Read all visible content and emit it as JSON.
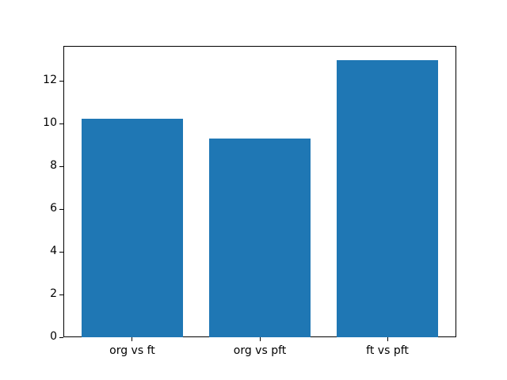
{
  "figure": {
    "background": "#ffffff"
  },
  "chart_data": {
    "type": "bar",
    "title": "",
    "xlabel": "",
    "ylabel": "",
    "categories": [
      "org vs ft",
      "org vs pft",
      "ft vs pft"
    ],
    "values": [
      10.25,
      9.3,
      13.0
    ],
    "yticks": [
      0,
      2,
      4,
      6,
      8,
      10,
      12
    ],
    "ylim": [
      0,
      13.65
    ],
    "xlim": [
      -0.54,
      2.54
    ],
    "bar_width": 0.8,
    "bar_color": "#1f77b4",
    "spine_color": "#000000",
    "tick_color": "#000000",
    "text_color": "#000000",
    "grid": false,
    "legend_position": "none"
  }
}
